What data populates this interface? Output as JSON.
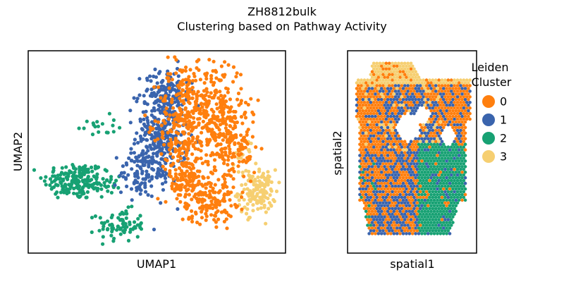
{
  "figure": {
    "suptitle": "ZH8812bulk",
    "title": "Clustering based on Pathway Activity"
  },
  "chart_data": [
    {
      "type": "scatter",
      "panel": "umap",
      "xlabel": "UMAP1",
      "ylabel": "UMAP2",
      "xticks": [],
      "yticks": [],
      "xlim": [
        0,
        36
      ],
      "ylim": [
        0,
        28
      ],
      "grid": false,
      "series": [
        {
          "name": "0",
          "color": "#ff7f0e",
          "description_regions": [
            {
              "cx": 21.5,
              "cy": 18.0,
              "rx": 3.0,
              "ry": 8.0,
              "n": 260
            },
            {
              "cx": 26.0,
              "cy": 19.5,
              "rx": 3.5,
              "ry": 7.0,
              "n": 300
            },
            {
              "cx": 29.0,
              "cy": 14.5,
              "rx": 2.6,
              "ry": 5.0,
              "n": 120
            },
            {
              "cx": 25.0,
              "cy": 7.5,
              "rx": 3.5,
              "ry": 3.0,
              "n": 160
            },
            {
              "cx": 22.0,
              "cy": 10.0,
              "rx": 2.0,
              "ry": 3.0,
              "n": 70
            }
          ]
        },
        {
          "name": "1",
          "color": "#3a64ad",
          "description_regions": [
            {
              "cx": 18.5,
              "cy": 16.0,
              "rx": 3.2,
              "ry": 6.0,
              "n": 330
            },
            {
              "cx": 19.5,
              "cy": 22.5,
              "rx": 2.8,
              "ry": 3.0,
              "n": 110
            },
            {
              "cx": 15.5,
              "cy": 11.0,
              "rx": 2.5,
              "ry": 3.0,
              "n": 80
            }
          ]
        },
        {
          "name": "2",
          "color": "#17a173",
          "description_regions": [
            {
              "cx": 6.5,
              "cy": 10.0,
              "rx": 4.0,
              "ry": 2.4,
              "n": 170
            },
            {
              "cx": 13.0,
              "cy": 3.8,
              "rx": 3.0,
              "ry": 2.0,
              "n": 80
            },
            {
              "cx": 9.5,
              "cy": 17.5,
              "rx": 2.5,
              "ry": 1.4,
              "n": 18
            },
            {
              "cx": 11.0,
              "cy": 9.5,
              "rx": 2.0,
              "ry": 2.0,
              "n": 30
            }
          ]
        },
        {
          "name": "3",
          "color": "#f6cf71",
          "description_regions": [
            {
              "cx": 32.0,
              "cy": 8.5,
              "rx": 2.4,
              "ry": 2.8,
              "n": 140
            },
            {
              "cx": 30.0,
              "cy": 13.0,
              "rx": 1.0,
              "ry": 2.0,
              "n": 15
            }
          ]
        }
      ]
    },
    {
      "type": "scatter",
      "panel": "spatial",
      "xlabel": "spatial1",
      "ylabel": "spatial2",
      "xticks": [],
      "yticks": [],
      "grid": false,
      "legend": {
        "title": "Leiden\nCluster",
        "placement": "right",
        "entries": [
          {
            "label": "0",
            "color": "#ff7f0e"
          },
          {
            "label": "1",
            "color": "#3a64ad"
          },
          {
            "label": "2",
            "color": "#17a173"
          },
          {
            "label": "3",
            "color": "#f6cf71"
          }
        ]
      }
    }
  ]
}
